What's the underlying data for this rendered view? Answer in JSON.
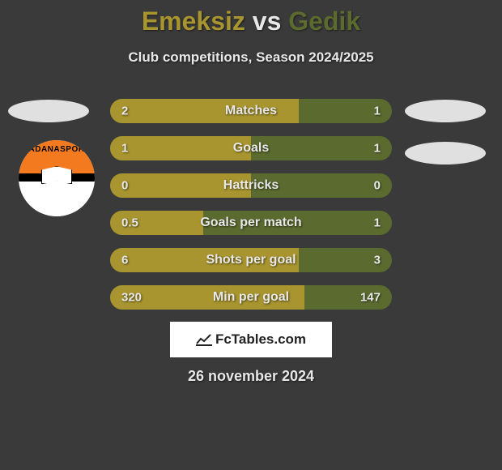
{
  "colors": {
    "background": "#3a3a3a",
    "player1": "#a8952f",
    "player2": "#5b6a2f",
    "text": "#e8e8e8",
    "emblem": "#e0e0e0",
    "watermark_bg": "#ffffff",
    "watermark_text": "#222222"
  },
  "title": {
    "player1": "Emeksiz",
    "vs": "vs",
    "player2": "Gedik",
    "fontsize": 32
  },
  "subtitle": "Club competitions, Season 2024/2025",
  "badge": {
    "name_top": "ADANASPOR"
  },
  "bars": {
    "height": 30,
    "gap": 16,
    "label_fontsize": 16,
    "value_fontsize": 15,
    "items": [
      {
        "label": "Matches",
        "left_val": "2",
        "right_val": "1",
        "left_pct": 67,
        "right_pct": 33
      },
      {
        "label": "Goals",
        "left_val": "1",
        "right_val": "1",
        "left_pct": 50,
        "right_pct": 50
      },
      {
        "label": "Hattricks",
        "left_val": "0",
        "right_val": "0",
        "left_pct": 50,
        "right_pct": 50
      },
      {
        "label": "Goals per match",
        "left_val": "0.5",
        "right_val": "1",
        "left_pct": 33,
        "right_pct": 67
      },
      {
        "label": "Shots per goal",
        "left_val": "6",
        "right_val": "3",
        "left_pct": 67,
        "right_pct": 33
      },
      {
        "label": "Min per goal",
        "left_val": "320",
        "right_val": "147",
        "left_pct": 69,
        "right_pct": 31
      }
    ]
  },
  "watermark": "FcTables.com",
  "date": "26 november 2024"
}
